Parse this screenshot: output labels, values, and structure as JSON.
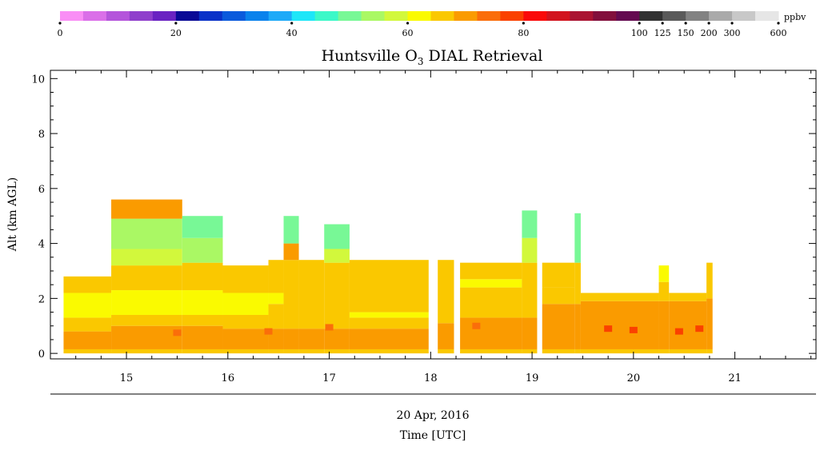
{
  "chart_data": {
    "type": "heatmap",
    "title": "Huntsville O",
    "title_sub": "3",
    "title_rest": " DIAL Retrieval",
    "ylabel": "Alt (km AGL)",
    "xlabel_date": "20 Apr, 2016",
    "xlabel": "Time [UTC]",
    "xlim": [
      14.25,
      21.8
    ],
    "ylim": [
      -0.2,
      10.3
    ],
    "xticks": [
      "15",
      "16",
      "17",
      "18",
      "19",
      "20",
      "21"
    ],
    "yticks": [
      "0",
      "2",
      "4",
      "6",
      "8",
      "10"
    ],
    "grid": false,
    "colorbar": {
      "unit": "ppbv",
      "colors": [
        "#f98ef5",
        "#da6fe8",
        "#b455db",
        "#8f3fcc",
        "#6a23c2",
        "#0a0a96",
        "#0a32c8",
        "#0a5adc",
        "#0a82ec",
        "#1eaaf8",
        "#1ee6f8",
        "#3cf8c8",
        "#78f896",
        "#aaf864",
        "#d2f83c",
        "#fafa00",
        "#fac800",
        "#fa9b00",
        "#fa6e0a",
        "#fa4100",
        "#fa0a0a",
        "#d2141e",
        "#aa1432",
        "#820f3c",
        "#640a50",
        "#323232",
        "#5a5a5a",
        "#828282",
        "#aaaaaa",
        "#c8c8c8",
        "#e6e6e6"
      ],
      "tick_labels": [
        "0",
        "20",
        "40",
        "60",
        "80",
        "100",
        "125",
        "150",
        "200",
        "300",
        "600"
      ]
    },
    "profiles": [
      {
        "t0": 14.38,
        "t1": 14.85,
        "top": 2.8,
        "layers": [
          [
            0,
            0.15,
            "#fac800"
          ],
          [
            0.15,
            0.8,
            "#fa9b00"
          ],
          [
            0.8,
            1.3,
            "#fac800"
          ],
          [
            1.3,
            2.2,
            "#fafa00"
          ],
          [
            2.2,
            2.8,
            "#fac800"
          ]
        ]
      },
      {
        "t0": 14.85,
        "t1": 15.55,
        "top": 5.6,
        "layers": [
          [
            0,
            0.15,
            "#fac800"
          ],
          [
            0.15,
            1.0,
            "#fa9b00"
          ],
          [
            1.0,
            1.4,
            "#fac800"
          ],
          [
            1.4,
            2.3,
            "#fafa00"
          ],
          [
            2.3,
            3.2,
            "#fac800"
          ],
          [
            3.2,
            3.8,
            "#d2f83c"
          ],
          [
            3.8,
            4.9,
            "#aaf864"
          ],
          [
            4.9,
            5.6,
            "#fa9b00"
          ]
        ]
      },
      {
        "t0": 15.55,
        "t1": 15.95,
        "top": 5.0,
        "layers": [
          [
            0,
            0.15,
            "#fac800"
          ],
          [
            0.15,
            1.0,
            "#fa9b00"
          ],
          [
            1.0,
            1.4,
            "#fac800"
          ],
          [
            1.4,
            2.3,
            "#fafa00"
          ],
          [
            2.3,
            3.3,
            "#fac800"
          ],
          [
            3.3,
            4.2,
            "#aaf864"
          ],
          [
            4.2,
            5.0,
            "#78f896"
          ]
        ]
      },
      {
        "t0": 15.95,
        "t1": 16.4,
        "top": 3.2,
        "layers": [
          [
            0,
            0.15,
            "#fac800"
          ],
          [
            0.15,
            0.9,
            "#fa9b00"
          ],
          [
            0.9,
            1.4,
            "#fac800"
          ],
          [
            1.4,
            2.2,
            "#fafa00"
          ],
          [
            2.2,
            3.2,
            "#fac800"
          ]
        ]
      },
      {
        "t0": 16.4,
        "t1": 16.55,
        "top": 3.4,
        "layers": [
          [
            0,
            0.15,
            "#fac800"
          ],
          [
            0.15,
            0.9,
            "#fa9b00"
          ],
          [
            0.9,
            1.8,
            "#fac800"
          ],
          [
            1.8,
            2.2,
            "#fafa00"
          ],
          [
            2.2,
            3.4,
            "#fac800"
          ]
        ]
      },
      {
        "t0": 16.55,
        "t1": 16.7,
        "top": 5.0,
        "layers": [
          [
            0,
            0.15,
            "#fac800"
          ],
          [
            0.15,
            0.9,
            "#fa9b00"
          ],
          [
            0.9,
            3.4,
            "#fac800"
          ],
          [
            3.4,
            4.0,
            "#fa9b00"
          ],
          [
            4.0,
            5.0,
            "#78f896"
          ]
        ]
      },
      {
        "t0": 16.7,
        "t1": 16.95,
        "top": 3.4,
        "layers": [
          [
            0,
            0.15,
            "#fac800"
          ],
          [
            0.15,
            0.9,
            "#fa9b00"
          ],
          [
            0.9,
            3.4,
            "#fac800"
          ]
        ]
      },
      {
        "t0": 16.95,
        "t1": 17.2,
        "top": 4.7,
        "layers": [
          [
            0,
            0.15,
            "#fac800"
          ],
          [
            0.15,
            0.9,
            "#fa9b00"
          ],
          [
            0.9,
            3.3,
            "#fac800"
          ],
          [
            3.3,
            3.8,
            "#d2f83c"
          ],
          [
            3.8,
            4.7,
            "#78f896"
          ]
        ]
      },
      {
        "t0": 17.2,
        "t1": 17.98,
        "top": 3.4,
        "layers": [
          [
            0,
            0.15,
            "#fac800"
          ],
          [
            0.15,
            0.9,
            "#fa9b00"
          ],
          [
            0.9,
            1.3,
            "#fac800"
          ],
          [
            1.3,
            1.5,
            "#fafa00"
          ],
          [
            1.5,
            3.4,
            "#fac800"
          ]
        ]
      },
      {
        "t0": 18.07,
        "t1": 18.23,
        "top": 3.4,
        "layers": [
          [
            0,
            0.15,
            "#fac800"
          ],
          [
            0.15,
            1.1,
            "#fa9b00"
          ],
          [
            1.1,
            3.4,
            "#fac800"
          ]
        ]
      },
      {
        "t0": 18.29,
        "t1": 18.9,
        "top": 3.3,
        "layers": [
          [
            0,
            0.15,
            "#fac800"
          ],
          [
            0.15,
            1.3,
            "#fa9b00"
          ],
          [
            1.3,
            2.4,
            "#fac800"
          ],
          [
            2.4,
            2.7,
            "#fafa00"
          ],
          [
            2.7,
            3.3,
            "#fac800"
          ]
        ]
      },
      {
        "t0": 18.9,
        "t1": 19.05,
        "top": 5.2,
        "layers": [
          [
            0,
            0.15,
            "#fac800"
          ],
          [
            0.15,
            1.3,
            "#fa9b00"
          ],
          [
            1.3,
            3.3,
            "#fac800"
          ],
          [
            3.3,
            4.2,
            "#d2f83c"
          ],
          [
            4.2,
            5.2,
            "#78f896"
          ]
        ]
      },
      {
        "t0": 19.1,
        "t1": 19.42,
        "top": 3.3,
        "layers": [
          [
            0,
            0.15,
            "#fac800"
          ],
          [
            0.15,
            1.8,
            "#fa9b00"
          ],
          [
            1.8,
            2.4,
            "#fac800"
          ],
          [
            2.4,
            3.3,
            "#fac800"
          ]
        ]
      },
      {
        "t0": 19.42,
        "t1": 19.48,
        "top": 5.1,
        "layers": [
          [
            0,
            0.15,
            "#fac800"
          ],
          [
            0.15,
            1.8,
            "#fa9b00"
          ],
          [
            1.8,
            3.3,
            "#fac800"
          ],
          [
            3.3,
            5.1,
            "#78f896"
          ]
        ]
      },
      {
        "t0": 19.48,
        "t1": 20.25,
        "top": 2.2,
        "layers": [
          [
            0,
            0.15,
            "#fac800"
          ],
          [
            0.15,
            1.9,
            "#fa9b00"
          ],
          [
            1.9,
            2.2,
            "#fac800"
          ]
        ]
      },
      {
        "t0": 20.25,
        "t1": 20.35,
        "top": 3.2,
        "layers": [
          [
            0,
            0.15,
            "#fac800"
          ],
          [
            0.15,
            1.9,
            "#fa9b00"
          ],
          [
            1.9,
            2.6,
            "#fac800"
          ],
          [
            2.6,
            3.2,
            "#fafa00"
          ]
        ]
      },
      {
        "t0": 20.35,
        "t1": 20.72,
        "top": 2.2,
        "layers": [
          [
            0,
            0.15,
            "#fac800"
          ],
          [
            0.15,
            1.9,
            "#fa9b00"
          ],
          [
            1.9,
            2.2,
            "#fac800"
          ]
        ]
      },
      {
        "t0": 20.72,
        "t1": 20.78,
        "top": 3.3,
        "layers": [
          [
            0,
            0.15,
            "#fac800"
          ],
          [
            0.15,
            2.0,
            "#fa9b00"
          ],
          [
            2.0,
            3.3,
            "#fac800"
          ]
        ]
      }
    ],
    "red_spots": [
      [
        20.45,
        0.8,
        "#fa4100"
      ],
      [
        20.65,
        0.9,
        "#fa4100"
      ],
      [
        20.0,
        0.85,
        "#fa4100"
      ],
      [
        19.75,
        0.9,
        "#fa4100"
      ],
      [
        17.0,
        0.95,
        "#fa6e0a"
      ],
      [
        16.4,
        0.8,
        "#fa6e0a"
      ],
      [
        15.5,
        0.75,
        "#fa6e0a"
      ],
      [
        18.45,
        1.0,
        "#fa6e0a"
      ]
    ]
  }
}
